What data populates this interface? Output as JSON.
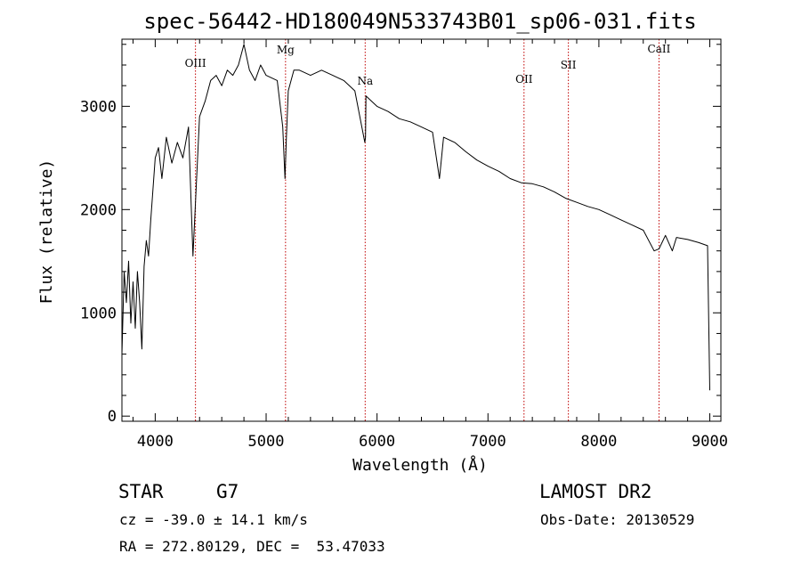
{
  "chart_data": {
    "type": "line",
    "title": "spec-56442-HD180049N533743B01_sp06-031.fits",
    "xlabel": "Wavelength (Å)",
    "ylabel": "Flux (relative)",
    "xlim": [
      3700,
      9100
    ],
    "ylim": [
      -50,
      3650
    ],
    "xticks": [
      4000,
      5000,
      6000,
      7000,
      8000,
      9000
    ],
    "yticks": [
      0,
      1000,
      2000,
      3000
    ],
    "grid": false,
    "series": [
      {
        "name": "flux",
        "x": [
          3700,
          3720,
          3740,
          3760,
          3780,
          3800,
          3820,
          3840,
          3860,
          3880,
          3900,
          3920,
          3940,
          3960,
          3980,
          4000,
          4030,
          4060,
          4100,
          4150,
          4200,
          4250,
          4300,
          4340,
          4400,
          4450,
          4500,
          4550,
          4600,
          4650,
          4700,
          4750,
          4800,
          4850,
          4900,
          4950,
          5000,
          5100,
          5150,
          5170,
          5183,
          5200,
          5250,
          5300,
          5400,
          5500,
          5600,
          5700,
          5800,
          5890,
          5896,
          5900,
          6000,
          6100,
          6200,
          6300,
          6400,
          6500,
          6563,
          6600,
          6700,
          6800,
          6900,
          7000,
          7100,
          7200,
          7300,
          7400,
          7500,
          7600,
          7700,
          7800,
          7900,
          8000,
          8100,
          8200,
          8300,
          8400,
          8498,
          8542,
          8600,
          8662,
          8700,
          8800,
          8900,
          8980,
          9000
        ],
        "y": [
          600,
          1400,
          1100,
          1500,
          900,
          1300,
          850,
          1400,
          1100,
          650,
          1450,
          1700,
          1550,
          1900,
          2200,
          2500,
          2600,
          2300,
          2700,
          2450,
          2650,
          2500,
          2800,
          1550,
          2900,
          3050,
          3250,
          3300,
          3200,
          3350,
          3300,
          3400,
          3600,
          3350,
          3250,
          3400,
          3300,
          3250,
          2800,
          2300,
          2700,
          3150,
          3350,
          3350,
          3300,
          3350,
          3300,
          3250,
          3150,
          2650,
          2700,
          3100,
          3000,
          2950,
          2880,
          2850,
          2800,
          2750,
          2300,
          2700,
          2650,
          2560,
          2480,
          2420,
          2370,
          2300,
          2260,
          2250,
          2220,
          2170,
          2110,
          2070,
          2030,
          2000,
          1950,
          1900,
          1850,
          1800,
          1600,
          1620,
          1750,
          1600,
          1730,
          1710,
          1680,
          1650,
          250
        ]
      }
    ],
    "annotations": [
      {
        "label": "OIII",
        "x": 4363
      },
      {
        "label": "Mg",
        "x": 5175
      },
      {
        "label": "Na",
        "x": 5893
      },
      {
        "label": "OII",
        "x": 7325
      },
      {
        "label": "SII",
        "x": 7725
      },
      {
        "label": "CaII",
        "x": 8542
      }
    ]
  },
  "info": {
    "object_class": "STAR",
    "subclass": "G7",
    "survey": "LAMOST DR2",
    "redshift": "cz = -39.0 ± 14.1 km/s",
    "obs_date": "Obs-Date: 20130529",
    "coords": "RA = 272.80129, DEC =  53.47033"
  },
  "colors": {
    "line": "#000000",
    "marker_line": "#c00000",
    "axis": "#000000"
  }
}
